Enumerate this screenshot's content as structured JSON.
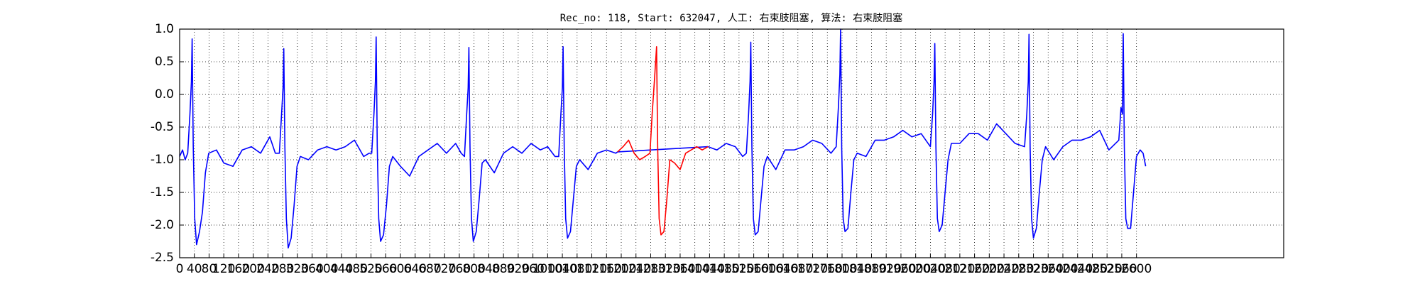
{
  "chart_data": {
    "type": "line",
    "title": "Rec_no: 118, Start: 632047, 人工: 右束肢阻塞, 算法: 右束肢阻塞",
    "xlim": [
      0,
      3000
    ],
    "ylim": [
      -2.5,
      1.0
    ],
    "xticks": [
      0,
      40,
      80,
      120,
      160,
      200,
      240,
      280,
      320,
      360,
      400,
      440,
      480,
      520,
      560,
      600,
      640,
      680,
      720,
      760,
      800,
      840,
      880,
      920,
      960,
      1000,
      1040,
      1080,
      1120,
      1160,
      1200,
      1240,
      1280,
      1320,
      1360,
      1400,
      1440,
      1480,
      1520,
      1560,
      1600,
      1640,
      1680,
      1720,
      1760,
      1800,
      1840,
      1880,
      1920,
      1960,
      2000,
      2040,
      2080,
      2120,
      2160,
      2200,
      2240,
      2280,
      2320,
      2360,
      2400,
      2440,
      2480,
      2520,
      2560,
      2600
    ],
    "yticks": [
      {
        "value": -2.5,
        "label": "-2.5"
      },
      {
        "value": -2,
        "label": "-2.0"
      },
      {
        "value": -1.5,
        "label": "-1.5"
      },
      {
        "value": -1,
        "label": "-1.0"
      },
      {
        "value": -0.5,
        "label": "-0.5"
      },
      {
        "value": 0,
        "label": "0.0"
      },
      {
        "value": 0.5,
        "label": "0.5"
      },
      {
        "value": 1,
        "label": "1.0"
      }
    ],
    "grid": true,
    "series": [
      {
        "color": "#0000ff",
        "x": [
          0,
          8,
          15,
          22,
          28,
          32,
          34,
          37,
          41,
          46,
          54,
          62,
          70,
          79,
          100,
          120,
          145,
          170,
          195,
          220,
          245,
          260,
          271,
          277,
          281,
          283,
          286,
          290,
          295,
          303,
          311,
          319,
          328,
          350,
          375,
          400,
          425,
          450,
          475,
          500,
          515,
          522,
          528,
          532,
          534,
          537,
          541,
          546,
          554,
          562,
          570,
          579,
          600,
          625,
          650,
          675,
          700,
          725,
          750,
          765,
          774,
          780,
          784,
          786,
          789,
          793,
          798,
          806,
          814,
          822,
          831,
          855,
          880,
          905,
          930,
          955,
          980,
          1000,
          1020,
          1030,
          1036,
          1040,
          1042,
          1045,
          1049,
          1054,
          1062,
          1070,
          1078,
          1087,
          1110,
          1135,
          1160,
          1185,
          1190,
          1436,
          1460,
          1485,
          1510,
          1530,
          1540,
          1546,
          1550,
          1552,
          1555,
          1559,
          1564,
          1572,
          1580,
          1588,
          1597,
          1620,
          1645,
          1670,
          1695,
          1720,
          1745,
          1770,
          1784,
          1790,
          1794,
          1796,
          1799,
          1803,
          1808,
          1816,
          1824,
          1832,
          1841,
          1865,
          1890,
          1915,
          1940,
          1965,
          1990,
          2015,
          2040,
          2046,
          2050,
          2052,
          2055,
          2059,
          2064,
          2072,
          2080,
          2088,
          2097,
          2120,
          2145,
          2170,
          2195,
          2220,
          2245,
          2270,
          2296,
          2302,
          2306,
          2308,
          2311,
          2315,
          2320,
          2328,
          2336,
          2344,
          2353,
          2375,
          2400,
          2425,
          2450,
          2475,
          2500,
          2525,
          2552,
          2558,
          2562,
          2564,
          2567,
          2571,
          2576,
          2584,
          2592,
          2600,
          2610,
          2618,
          2625
        ],
        "values": [
          -0.95,
          -0.85,
          -1.0,
          -0.9,
          -0.3,
          0.2,
          0.85,
          -0.8,
          -1.9,
          -2.3,
          -2.1,
          -1.8,
          -1.2,
          -0.9,
          -0.85,
          -1.05,
          -1.1,
          -0.85,
          -0.8,
          -0.9,
          -0.65,
          -0.9,
          -0.9,
          -0.3,
          0.1,
          0.7,
          -0.8,
          -1.9,
          -2.35,
          -2.2,
          -1.7,
          -1.1,
          -0.95,
          -1.0,
          -0.85,
          -0.8,
          -0.85,
          -0.8,
          -0.7,
          -0.95,
          -0.9,
          -0.9,
          -0.3,
          0.2,
          0.88,
          -0.8,
          -1.9,
          -2.25,
          -2.15,
          -1.7,
          -1.1,
          -0.95,
          -1.1,
          -1.25,
          -0.95,
          -0.85,
          -0.75,
          -0.9,
          -0.75,
          -0.9,
          -0.95,
          -0.3,
          0.1,
          0.72,
          -0.8,
          -1.9,
          -2.25,
          -2.1,
          -1.6,
          -1.05,
          -1.0,
          -1.2,
          -0.9,
          -0.8,
          -0.9,
          -0.75,
          -0.85,
          -0.8,
          -0.95,
          -0.95,
          -0.3,
          0.1,
          0.73,
          -0.8,
          -1.9,
          -2.2,
          -2.1,
          -1.6,
          -1.1,
          -1.0,
          -1.15,
          -0.9,
          -0.85,
          -0.9,
          -0.88,
          -0.8,
          -0.85,
          -0.75,
          -0.8,
          -0.95,
          -0.9,
          -0.3,
          0.2,
          0.8,
          -0.8,
          -1.9,
          -2.15,
          -2.1,
          -1.6,
          -1.1,
          -0.95,
          -1.15,
          -0.85,
          -0.85,
          -0.8,
          -0.7,
          -0.75,
          -0.9,
          -0.8,
          -0.2,
          0.3,
          1.0,
          -0.8,
          -1.9,
          -2.1,
          -2.05,
          -1.5,
          -1.0,
          -0.9,
          -0.95,
          -0.7,
          -0.7,
          -0.65,
          -0.55,
          -0.65,
          -0.6,
          -0.8,
          -0.3,
          0.2,
          0.78,
          -0.8,
          -1.9,
          -2.1,
          -2.0,
          -1.5,
          -1.0,
          -0.75,
          -0.75,
          -0.6,
          -0.6,
          -0.7,
          -0.45,
          -0.6,
          -0.75,
          -0.8,
          -0.3,
          0.2,
          0.92,
          -0.8,
          -1.9,
          -2.2,
          -2.05,
          -1.5,
          -1.0,
          -0.8,
          -1.0,
          -0.8,
          -0.7,
          -0.7,
          -0.65,
          -0.55,
          -0.85,
          -0.7,
          -0.2,
          -0.3,
          0.93,
          -0.8,
          -1.9,
          -2.05,
          -2.05,
          -1.5,
          -0.95,
          -0.85,
          -0.9,
          -1.1
        ]
      },
      {
        "color": "#ff0000",
        "x": [
          1190,
          1205,
          1220,
          1235,
          1250,
          1265,
          1278,
          1284,
          1290,
          1296,
          1299,
          1303,
          1308,
          1316,
          1324,
          1332,
          1345,
          1360,
          1375,
          1390,
          1405,
          1420,
          1436
        ],
        "values": [
          -0.88,
          -0.8,
          -0.7,
          -0.9,
          -1.0,
          -0.95,
          -0.9,
          -0.3,
          0.2,
          0.73,
          -0.8,
          -1.9,
          -2.15,
          -2.1,
          -1.6,
          -1.0,
          -1.05,
          -1.15,
          -0.9,
          -0.85,
          -0.8,
          -0.85,
          -0.8
        ]
      }
    ]
  }
}
